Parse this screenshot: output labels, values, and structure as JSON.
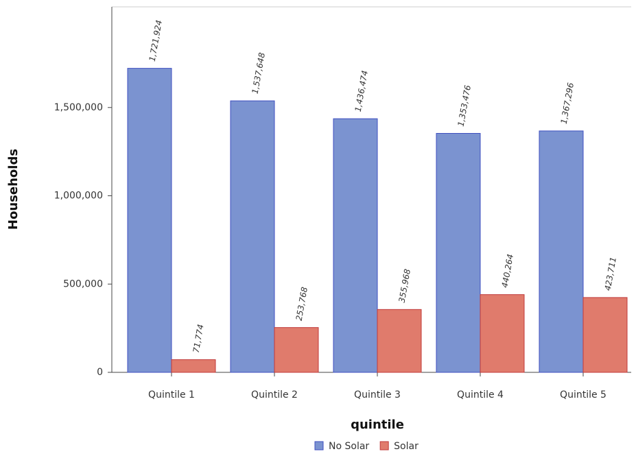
{
  "chart_data": {
    "type": "bar",
    "x_label": "quintile",
    "y_label": "Households",
    "categories": [
      "Quintile 1",
      "Quintile 2",
      "Quintile 3",
      "Quintile 4",
      "Quintile 5"
    ],
    "series": [
      {
        "name": "No Solar",
        "color": "#7b93d0",
        "edge": "#3f4fc0",
        "values": [
          1721924,
          1537648,
          1436474,
          1353476,
          1367296
        ],
        "value_labels": [
          "1,721,924",
          "1,537,648",
          "1,436,474",
          "1,353,476",
          "1,367,296"
        ]
      },
      {
        "name": "Solar",
        "color": "#e07b6c",
        "edge": "#c03a3a",
        "values": [
          71774,
          253768,
          355968,
          440264,
          423711
        ],
        "value_labels": [
          "71,774",
          "253,768",
          "355,968",
          "440,264",
          "423,711"
        ]
      }
    ],
    "ylim": [
      0,
      2070000
    ],
    "yticks": [
      0,
      {
        "value": 500000,
        "label": "500,000"
      },
      {
        "value": 1000000,
        "label": "1,000,000"
      },
      {
        "value": 1500000,
        "label": "1,500,000"
      }
    ]
  }
}
